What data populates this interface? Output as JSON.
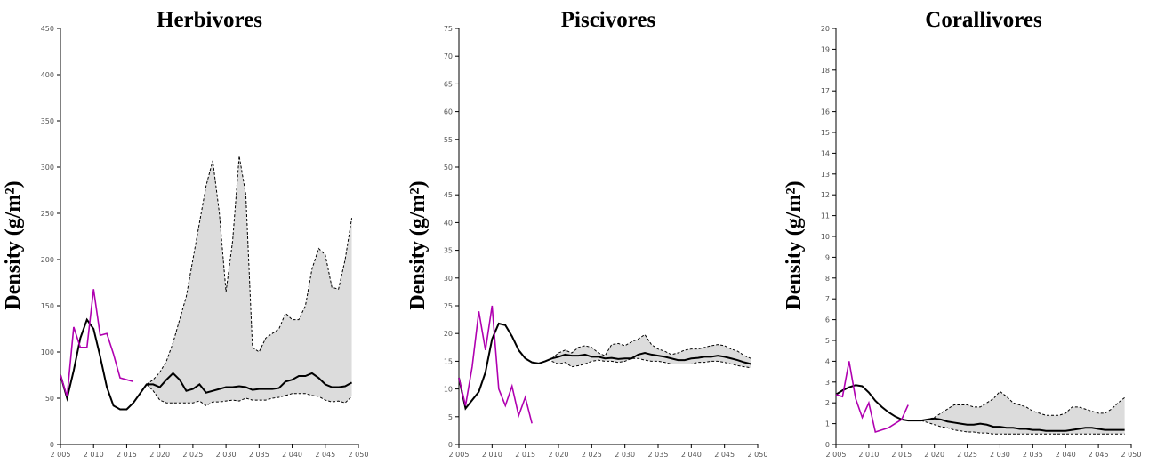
{
  "chart_data": [
    {
      "type": "line",
      "title": "Herbivores",
      "y_label": "Density (g/m²)",
      "xlim": [
        2005,
        2050
      ],
      "ylim": [
        0,
        450
      ],
      "xticks": [
        {
          "value": 2005,
          "label": "2 005"
        },
        {
          "value": 2010,
          "label": "2 010"
        },
        {
          "value": 2015,
          "label": "2 015"
        },
        {
          "value": 2020,
          "label": "2 020"
        },
        {
          "value": 2025,
          "label": "2 025"
        },
        {
          "value": 2030,
          "label": "2 030"
        },
        {
          "value": 2035,
          "label": "2 035"
        },
        {
          "value": 2040,
          "label": "2 040"
        },
        {
          "value": 2045,
          "label": "2 045"
        },
        {
          "value": 2050,
          "label": "2 050"
        }
      ],
      "yticks": [
        0,
        50,
        100,
        150,
        200,
        250,
        300,
        350,
        400,
        450
      ],
      "band": {
        "color": "#dcdcdc",
        "x": [
          2018,
          2019,
          2020,
          2021,
          2022,
          2023,
          2024,
          2025,
          2026,
          2027,
          2028,
          2029,
          2030,
          2031,
          2032,
          2033,
          2034,
          2035,
          2036,
          2037,
          2038,
          2039,
          2040,
          2041,
          2042,
          2043,
          2044,
          2045,
          2046,
          2047,
          2048,
          2049
        ],
        "upper": [
          65,
          70,
          78,
          90,
          110,
          135,
          160,
          200,
          240,
          280,
          307,
          250,
          165,
          220,
          312,
          270,
          105,
          100,
          115,
          120,
          125,
          142,
          135,
          135,
          150,
          190,
          212,
          205,
          170,
          168,
          200,
          245
        ],
        "lower": [
          65,
          58,
          48,
          45,
          45,
          45,
          45,
          45,
          47,
          42,
          46,
          46,
          47,
          48,
          47,
          50,
          48,
          48,
          48,
          50,
          51,
          53,
          55,
          55,
          55,
          53,
          52,
          48,
          46,
          47,
          45,
          52
        ]
      },
      "series": [
        {
          "color": "#000000",
          "x": [
            2005,
            2006,
            2007,
            2008,
            2009,
            2010,
            2011,
            2012,
            2013,
            2014,
            2015,
            2016,
            2017,
            2018,
            2019,
            2020,
            2021,
            2022,
            2023,
            2024,
            2025,
            2026,
            2027,
            2028,
            2029,
            2030,
            2031,
            2032,
            2033,
            2034,
            2035,
            2036,
            2037,
            2038,
            2039,
            2040,
            2041,
            2042,
            2043,
            2044,
            2045,
            2046,
            2047,
            2048,
            2049
          ],
          "values": [
            75,
            50,
            80,
            115,
            135,
            125,
            95,
            62,
            42,
            38,
            38,
            45,
            55,
            65,
            65,
            62,
            70,
            77,
            70,
            58,
            60,
            65,
            56,
            58,
            60,
            62,
            62,
            63,
            62,
            59,
            60,
            60,
            60,
            61,
            68,
            70,
            74,
            74,
            77,
            72,
            65,
            62,
            62,
            63,
            67
          ]
        },
        {
          "color": "#b000b0",
          "x": [
            2005,
            2006,
            2007,
            2008,
            2009,
            2010,
            2011,
            2012,
            2013,
            2014,
            2015,
            2016
          ],
          "values": [
            75,
            52,
            127,
            105,
            105,
            168,
            118,
            120,
            98,
            72,
            70,
            68
          ]
        }
      ]
    },
    {
      "type": "line",
      "title": "Piscivores",
      "y_label": "Density (g/m²)",
      "xlim": [
        2005,
        2050
      ],
      "ylim": [
        0,
        75
      ],
      "xticks": [
        {
          "value": 2005,
          "label": "2 005"
        },
        {
          "value": 2010,
          "label": "2 010"
        },
        {
          "value": 2015,
          "label": "2 015"
        },
        {
          "value": 2020,
          "label": "2 020"
        },
        {
          "value": 2025,
          "label": "2 025"
        },
        {
          "value": 2030,
          "label": "2 030"
        },
        {
          "value": 2035,
          "label": "2 035"
        },
        {
          "value": 2040,
          "label": "2 040"
        },
        {
          "value": 2045,
          "label": "2 045"
        },
        {
          "value": 2050,
          "label": "2 050"
        }
      ],
      "yticks": [
        0,
        5,
        10,
        15,
        20,
        25,
        30,
        35,
        40,
        45,
        50,
        55,
        60,
        65,
        70,
        75
      ],
      "band": {
        "color": "#dcdcdc",
        "x": [
          2019,
          2020,
          2021,
          2022,
          2023,
          2024,
          2025,
          2026,
          2027,
          2028,
          2029,
          2030,
          2031,
          2032,
          2033,
          2034,
          2035,
          2036,
          2037,
          2038,
          2039,
          2040,
          2041,
          2042,
          2043,
          2044,
          2045,
          2046,
          2047,
          2048,
          2049
        ],
        "upper": [
          15.5,
          16.5,
          17,
          16.5,
          17.5,
          17.8,
          17.5,
          16.5,
          16,
          18,
          18.2,
          17.8,
          18.5,
          19,
          19.8,
          18,
          17.2,
          16.8,
          16.2,
          16.5,
          17,
          17.2,
          17.2,
          17.5,
          17.8,
          18,
          17.8,
          17.2,
          16.8,
          16,
          15.5
        ],
        "lower": [
          15,
          14.5,
          14.8,
          14,
          14.2,
          14.5,
          15,
          15.2,
          15,
          15,
          14.8,
          15,
          15.5,
          15.5,
          15.2,
          15,
          15,
          14.8,
          14.5,
          14.5,
          14.5,
          14.5,
          14.8,
          14.8,
          15,
          15,
          14.8,
          14.5,
          14.2,
          14,
          13.8
        ]
      },
      "series": [
        {
          "color": "#000000",
          "x": [
            2005,
            2006,
            2007,
            2008,
            2009,
            2010,
            2011,
            2012,
            2013,
            2014,
            2015,
            2016,
            2017,
            2018,
            2019,
            2020,
            2021,
            2022,
            2023,
            2024,
            2025,
            2026,
            2027,
            2028,
            2029,
            2030,
            2031,
            2032,
            2033,
            2034,
            2035,
            2036,
            2037,
            2038,
            2039,
            2040,
            2041,
            2042,
            2043,
            2044,
            2045,
            2046,
            2047,
            2048,
            2049
          ],
          "values": [
            12,
            6.5,
            8,
            9.5,
            13,
            19,
            21.8,
            21.5,
            19.5,
            17,
            15.5,
            14.8,
            14.6,
            15,
            15.5,
            15.8,
            16.2,
            16,
            16,
            16.2,
            15.8,
            15.8,
            15.5,
            15.6,
            15.4,
            15.5,
            15.5,
            16.2,
            16.5,
            16.2,
            16,
            15.8,
            15.5,
            15.2,
            15.2,
            15.5,
            15.6,
            15.8,
            15.8,
            16,
            15.8,
            15.5,
            15.2,
            14.8,
            14.5
          ]
        },
        {
          "color": "#b000b0",
          "x": [
            2005,
            2006,
            2007,
            2008,
            2009,
            2010,
            2011,
            2012,
            2013,
            2014,
            2015,
            2016
          ],
          "values": [
            12,
            7,
            14,
            24,
            17,
            25,
            10,
            7,
            10.5,
            5.2,
            8.5,
            3.8
          ]
        }
      ]
    },
    {
      "type": "line",
      "title": "Corallivores",
      "y_label": "Density (g/m²)",
      "xlim": [
        2005,
        2050
      ],
      "ylim": [
        0,
        20
      ],
      "xticks": [
        {
          "value": 2005,
          "label": "2 005"
        },
        {
          "value": 2010,
          "label": "2 010"
        },
        {
          "value": 2015,
          "label": "2 015"
        },
        {
          "value": 2020,
          "label": "2 020"
        },
        {
          "value": 2025,
          "label": "2 025"
        },
        {
          "value": 2030,
          "label": "2 030"
        },
        {
          "value": 2035,
          "label": "2 035"
        },
        {
          "value": 2040,
          "label": "2 040"
        },
        {
          "value": 2045,
          "label": "2 045"
        },
        {
          "value": 2050,
          "label": "2 050"
        }
      ],
      "yticks": [
        0,
        1,
        2,
        3,
        4,
        5,
        6,
        7,
        8,
        9,
        10,
        11,
        12,
        13,
        14,
        15,
        16,
        17,
        18,
        19,
        20
      ],
      "band": {
        "color": "#dcdcdc",
        "x": [
          2018,
          2019,
          2020,
          2021,
          2022,
          2023,
          2024,
          2025,
          2026,
          2027,
          2028,
          2029,
          2030,
          2031,
          2032,
          2033,
          2034,
          2035,
          2036,
          2037,
          2038,
          2039,
          2040,
          2041,
          2042,
          2043,
          2044,
          2045,
          2046,
          2047,
          2048,
          2049
        ],
        "upper": [
          1.15,
          1.2,
          1.3,
          1.5,
          1.7,
          1.9,
          1.9,
          1.9,
          1.8,
          1.8,
          2.0,
          2.2,
          2.55,
          2.3,
          2.0,
          1.9,
          1.8,
          1.6,
          1.5,
          1.4,
          1.4,
          1.4,
          1.5,
          1.8,
          1.8,
          1.7,
          1.6,
          1.5,
          1.5,
          1.7,
          2.0,
          2.25
        ],
        "lower": [
          1.15,
          1.05,
          0.95,
          0.85,
          0.8,
          0.7,
          0.65,
          0.6,
          0.6,
          0.55,
          0.55,
          0.5,
          0.5,
          0.5,
          0.5,
          0.5,
          0.5,
          0.5,
          0.5,
          0.5,
          0.5,
          0.5,
          0.5,
          0.5,
          0.5,
          0.5,
          0.5,
          0.5,
          0.5,
          0.5,
          0.5,
          0.5
        ]
      },
      "series": [
        {
          "color": "#000000",
          "x": [
            2005,
            2006,
            2007,
            2008,
            2009,
            2010,
            2011,
            2012,
            2013,
            2014,
            2015,
            2016,
            2017,
            2018,
            2019,
            2020,
            2021,
            2022,
            2023,
            2024,
            2025,
            2026,
            2027,
            2028,
            2029,
            2030,
            2031,
            2032,
            2033,
            2034,
            2035,
            2036,
            2037,
            2038,
            2039,
            2040,
            2041,
            2042,
            2043,
            2044,
            2045,
            2046,
            2047,
            2048,
            2049
          ],
          "values": [
            2.4,
            2.6,
            2.75,
            2.85,
            2.8,
            2.5,
            2.1,
            1.8,
            1.55,
            1.35,
            1.2,
            1.15,
            1.15,
            1.15,
            1.2,
            1.25,
            1.2,
            1.1,
            1.05,
            1.0,
            0.95,
            0.95,
            1.0,
            0.95,
            0.85,
            0.85,
            0.8,
            0.8,
            0.75,
            0.75,
            0.7,
            0.7,
            0.65,
            0.65,
            0.65,
            0.65,
            0.7,
            0.75,
            0.8,
            0.8,
            0.75,
            0.7,
            0.7,
            0.7,
            0.7
          ]
        },
        {
          "color": "#b000b0",
          "x": [
            2005,
            2006,
            2007,
            2008,
            2009,
            2010,
            2011,
            2012,
            2013,
            2014,
            2015,
            2016
          ],
          "values": [
            2.4,
            2.3,
            4.0,
            2.2,
            1.3,
            2.0,
            0.6,
            0.7,
            0.8,
            1.0,
            1.2,
            1.9
          ]
        }
      ]
    }
  ]
}
